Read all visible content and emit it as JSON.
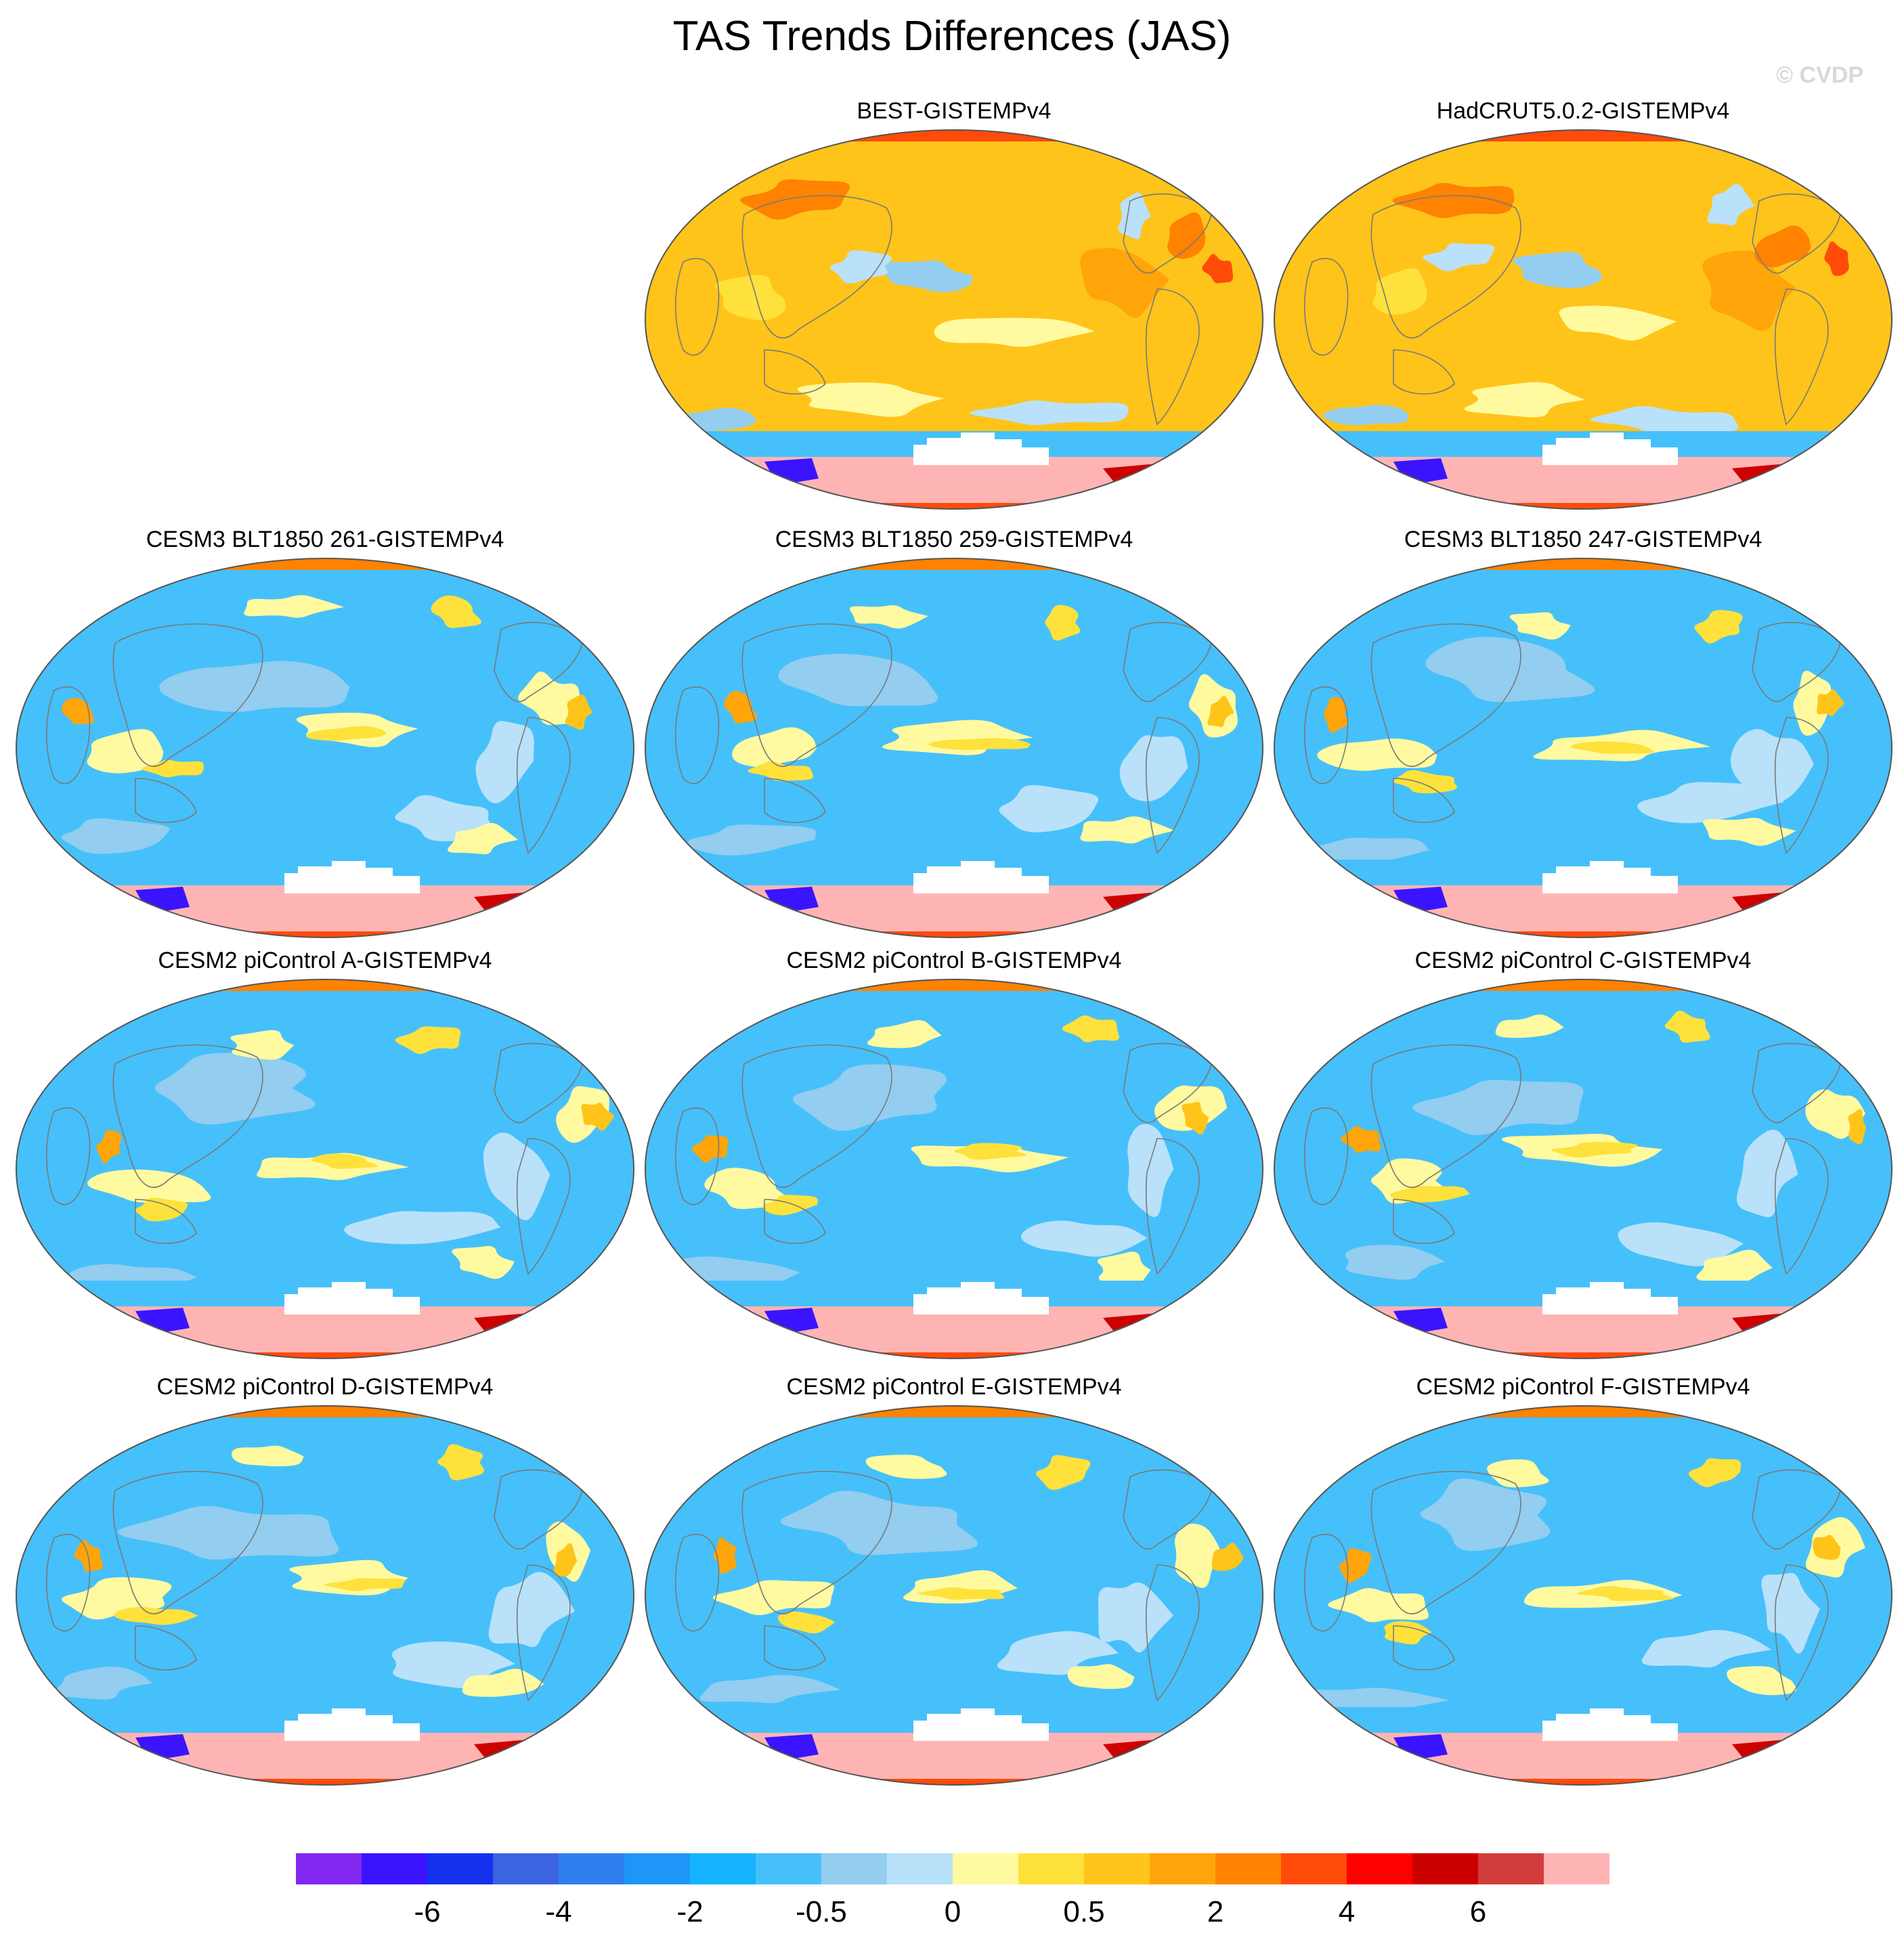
{
  "title": "TAS Trends Differences (JAS)",
  "watermark": "© CVDP",
  "panels": [
    {
      "title": "BEST-GISTEMPv4",
      "style": "warm"
    },
    {
      "title": "HadCRUT5.0.2-GISTEMPv4",
      "style": "warm"
    },
    {
      "title": "CESM3 BLT1850 261-GISTEMPv4",
      "style": "cool"
    },
    {
      "title": "CESM3 BLT1850 259-GISTEMPv4",
      "style": "cool"
    },
    {
      "title": "CESM3 BLT1850 247-GISTEMPv4",
      "style": "cool"
    },
    {
      "title": "CESM2 piControl A-GISTEMPv4",
      "style": "cool"
    },
    {
      "title": "CESM2 piControl B-GISTEMPv4",
      "style": "cool"
    },
    {
      "title": "CESM2 piControl C-GISTEMPv4",
      "style": "cool"
    },
    {
      "title": "CESM2 piControl D-GISTEMPv4",
      "style": "cool"
    },
    {
      "title": "CESM2 piControl E-GISTEMPv4",
      "style": "cool"
    },
    {
      "title": "CESM2 piControl F-GISTEMPv4",
      "style": "cool"
    }
  ],
  "colorbar": {
    "colors": [
      "#8228f0",
      "#3a14ff",
      "#1432ee",
      "#3b64e0",
      "#2f7ff0",
      "#1e96f7",
      "#14b4ff",
      "#46c0fa",
      "#93cdf0",
      "#b9e1fa",
      "#fffaa0",
      "#ffe13c",
      "#ffc41a",
      "#ffa50a",
      "#ff8200",
      "#ff4b0a",
      "#ff0000",
      "#cd0000",
      "#d23c3c",
      "#ffb4b4"
    ],
    "labels": [
      {
        "text": "-6",
        "after_box": 2
      },
      {
        "text": "-4",
        "after_box": 4
      },
      {
        "text": "-2",
        "after_box": 6
      },
      {
        "text": "-0.5",
        "after_box": 8
      },
      {
        "text": "0",
        "after_box": 10
      },
      {
        "text": "0.5",
        "after_box": 12
      },
      {
        "text": "2",
        "after_box": 14
      },
      {
        "text": "4",
        "after_box": 16
      },
      {
        "text": "6",
        "after_box": 18
      }
    ]
  }
}
